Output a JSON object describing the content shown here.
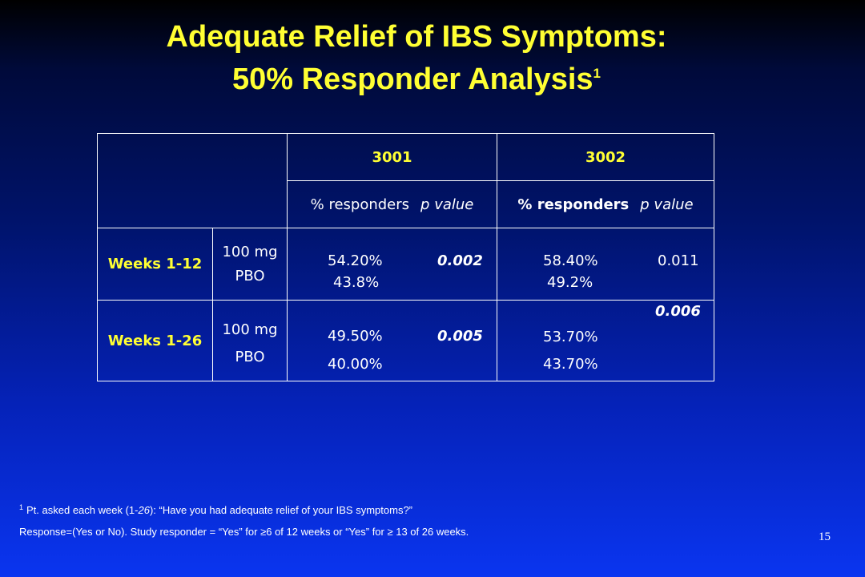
{
  "title": {
    "line1": "Adequate Relief of IBS Symptoms:",
    "line2": "50% Responder Analysis",
    "superscript": "1"
  },
  "table": {
    "studies": [
      "3001",
      "3002"
    ],
    "subheaders": {
      "study1": {
        "responders": "% responders",
        "pvalue": "p value"
      },
      "study2": {
        "responders": "% responders",
        "pvalue": "p value"
      }
    },
    "rows": [
      {
        "period": "Weeks 1-12",
        "groups": [
          "100 mg",
          "PBO"
        ],
        "s1_values": [
          "54.20%",
          "43.8%"
        ],
        "s1_p": "0.002",
        "s2_values": [
          "58.40%",
          "49.2%"
        ],
        "s2_p": "0.011"
      },
      {
        "period": "Weeks 1-26",
        "groups": [
          "100 mg",
          "PBO"
        ],
        "s1_values": [
          "49.50%",
          "40.00%"
        ],
        "s1_p": "0.005",
        "s2_values": [
          "53.70%",
          "43.70%"
        ],
        "s2_p": "0.006"
      }
    ]
  },
  "footnote": {
    "marker": "1",
    "line1_prefix": "Pt. asked each week (1-",
    "line1_italic": "26",
    "line1_suffix": "): “Have you had adequate relief of your IBS symptoms?”",
    "line2": "Response=(Yes or No). Study responder = “Yes” for  ≥6 of 12 weeks or “Yes” for ≥ 13 of 26 weeks."
  },
  "page_number": "15",
  "colors": {
    "title": "#ffff33",
    "period_label": "#ffff33",
    "background_top": "#000000",
    "background_bottom": "#0a35f0"
  }
}
